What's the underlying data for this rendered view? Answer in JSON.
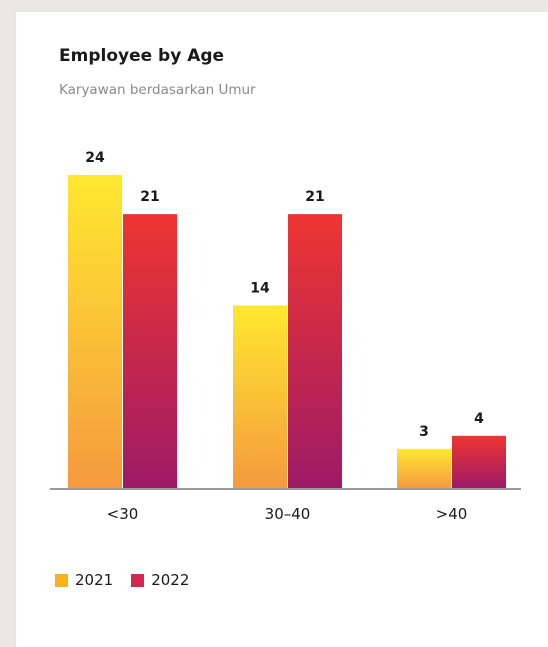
{
  "chart_data": {
    "type": "bar",
    "title": "Employee by Age",
    "subtitle": "Karyawan berdasarkan Umur",
    "categories": [
      "<30",
      "30–40",
      ">40"
    ],
    "series": [
      {
        "name": "2021",
        "values": [
          24,
          14,
          3
        ],
        "color_top": "#ffe830",
        "color_bottom": "#f59a3e"
      },
      {
        "name": "2022",
        "values": [
          21,
          21,
          4
        ],
        "color_top": "#ee3532",
        "color_bottom": "#9e1a66"
      }
    ],
    "ylim": [
      0,
      24
    ],
    "grid": false,
    "legend_position": "bottom-left"
  },
  "colors": {
    "legend_2021": "#f9b21c",
    "legend_2022": "#d4264e",
    "axis": "#9a9a9a"
  }
}
